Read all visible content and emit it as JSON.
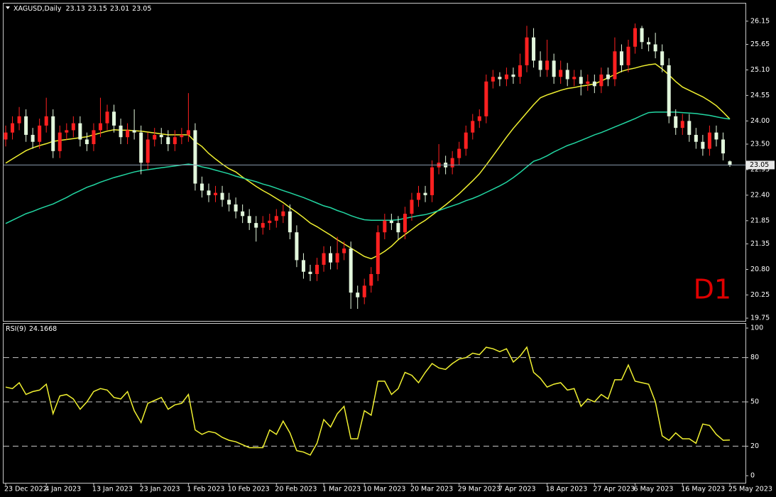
{
  "chart_data": {
    "type": "candlestick",
    "title": "XAGUSD,Daily",
    "annotation": "D1",
    "categories": [
      "23 Dec 2022",
      null,
      null,
      null,
      null,
      null,
      "4 Jan 2023",
      null,
      null,
      null,
      null,
      null,
      null,
      "13 Jan 2023",
      null,
      null,
      null,
      null,
      null,
      null,
      "23 Jan 2023",
      null,
      null,
      null,
      null,
      null,
      null,
      "1 Feb 2023",
      null,
      null,
      null,
      null,
      null,
      "10 Feb 2023",
      null,
      null,
      null,
      null,
      null,
      null,
      "20 Feb 2023",
      null,
      null,
      null,
      null,
      null,
      null,
      "1 Mar 2023",
      null,
      null,
      null,
      null,
      null,
      "10 Mar 2023",
      null,
      null,
      null,
      null,
      null,
      null,
      "20 Mar 2023",
      null,
      null,
      null,
      null,
      null,
      null,
      "29 Mar 2023",
      null,
      null,
      null,
      null,
      null,
      "7 Apr 2023",
      null,
      null,
      null,
      null,
      null,
      null,
      "18 Apr 2023",
      null,
      null,
      null,
      null,
      null,
      null,
      "27 Apr 2023",
      null,
      null,
      null,
      null,
      null,
      "6 May 2023",
      null,
      null,
      null,
      null,
      null,
      null,
      "16 May 2023",
      null,
      null,
      null,
      null,
      null,
      null,
      "25 May 2023"
    ],
    "open": [
      23.6,
      23.75,
      23.95,
      24.1,
      23.7,
      23.55,
      23.9,
      24.1,
      23.35,
      23.75,
      23.8,
      23.95,
      23.6,
      23.5,
      23.8,
      23.95,
      24.2,
      23.9,
      23.65,
      23.8,
      23.75,
      23.1,
      23.6,
      23.7,
      23.65,
      23.5,
      23.65,
      23.7,
      23.8,
      22.65,
      22.5,
      22.4,
      22.45,
      22.3,
      22.2,
      22.05,
      21.95,
      21.8,
      21.7,
      21.8,
      21.85,
      21.95,
      22.05,
      21.6,
      21.0,
      20.75,
      20.7,
      20.9,
      21.15,
      20.95,
      21.15,
      21.25,
      20.3,
      20.2,
      20.45,
      20.7,
      21.6,
      21.85,
      21.8,
      21.6,
      22.0,
      22.3,
      22.45,
      22.4,
      23.0,
      23.1,
      23.0,
      23.2,
      23.4,
      23.75,
      24.0,
      24.1,
      24.85,
      24.95,
      24.9,
      25.0,
      24.95,
      25.2,
      25.8,
      25.3,
      25.1,
      25.3,
      24.95,
      25.1,
      24.9,
      24.95,
      24.8,
      24.85,
      24.75,
      25.0,
      24.9,
      25.5,
      25.2,
      25.6,
      26.0,
      25.7,
      25.65,
      25.5,
      25.2,
      24.1,
      23.85,
      24.0,
      23.7,
      23.55,
      23.4,
      23.75,
      23.6,
      23.13
    ],
    "high": [
      23.9,
      24.1,
      24.3,
      24.25,
      23.85,
      24.05,
      24.5,
      24.25,
      23.9,
      23.95,
      24.1,
      24.1,
      23.75,
      23.95,
      24.5,
      24.35,
      24.35,
      24.05,
      23.95,
      24.25,
      23.9,
      23.75,
      23.85,
      23.85,
      23.8,
      23.8,
      23.85,
      24.6,
      23.95,
      22.8,
      22.65,
      22.6,
      22.6,
      22.45,
      22.35,
      22.2,
      22.1,
      21.95,
      21.95,
      22.0,
      22.1,
      22.2,
      22.2,
      21.75,
      21.15,
      20.9,
      21.05,
      21.3,
      21.3,
      21.5,
      21.4,
      21.4,
      20.45,
      20.6,
      20.85,
      21.75,
      22.0,
      22.0,
      21.95,
      22.15,
      22.45,
      22.6,
      22.6,
      23.15,
      23.5,
      23.25,
      23.35,
      23.55,
      23.9,
      24.15,
      24.25,
      25.0,
      25.1,
      25.05,
      25.15,
      25.15,
      25.45,
      26.05,
      26.0,
      25.5,
      25.75,
      25.45,
      25.3,
      25.25,
      25.1,
      25.1,
      25.0,
      25.0,
      25.15,
      25.15,
      25.8,
      25.65,
      25.75,
      26.1,
      26.05,
      25.8,
      25.9,
      25.65,
      25.35,
      24.25,
      24.15,
      24.15,
      23.85,
      23.7,
      23.9,
      23.9,
      23.75,
      23.15
    ],
    "low": [
      23.45,
      23.6,
      23.8,
      23.55,
      23.4,
      23.4,
      23.75,
      23.2,
      23.2,
      23.6,
      23.65,
      23.45,
      23.35,
      23.35,
      23.65,
      23.8,
      23.75,
      23.5,
      23.5,
      23.6,
      22.85,
      22.95,
      23.45,
      23.5,
      23.35,
      23.35,
      23.5,
      23.55,
      22.5,
      22.35,
      22.25,
      22.25,
      22.15,
      22.05,
      21.9,
      21.8,
      21.65,
      21.4,
      21.55,
      21.65,
      21.7,
      21.8,
      21.45,
      20.85,
      20.6,
      20.55,
      20.55,
      20.75,
      20.8,
      20.8,
      21.0,
      19.95,
      19.95,
      20.05,
      20.3,
      20.55,
      21.45,
      21.65,
      21.45,
      21.45,
      21.85,
      22.15,
      22.25,
      22.25,
      22.85,
      22.85,
      22.85,
      23.05,
      23.25,
      23.6,
      23.85,
      23.95,
      24.7,
      24.75,
      24.75,
      24.8,
      24.8,
      25.05,
      25.15,
      24.95,
      24.95,
      24.8,
      24.8,
      24.75,
      24.75,
      24.55,
      24.65,
      24.6,
      24.6,
      24.75,
      24.75,
      25.05,
      25.05,
      25.45,
      25.55,
      25.5,
      25.35,
      25.05,
      23.95,
      23.7,
      23.7,
      23.55,
      23.4,
      23.25,
      23.25,
      23.45,
      23.15,
      23.01
    ],
    "close": [
      23.75,
      23.95,
      24.1,
      23.7,
      23.55,
      23.9,
      24.1,
      23.35,
      23.75,
      23.8,
      23.95,
      23.6,
      23.5,
      23.8,
      23.95,
      24.2,
      23.9,
      23.65,
      23.8,
      23.75,
      23.1,
      23.6,
      23.7,
      23.65,
      23.5,
      23.65,
      23.7,
      23.8,
      22.65,
      22.5,
      22.4,
      22.45,
      22.3,
      22.2,
      22.05,
      21.95,
      21.8,
      21.7,
      21.8,
      21.85,
      21.95,
      22.05,
      21.6,
      21.0,
      20.75,
      20.7,
      20.9,
      21.15,
      20.95,
      21.15,
      21.25,
      20.3,
      20.2,
      20.45,
      20.7,
      21.6,
      21.85,
      21.8,
      21.6,
      22.0,
      22.3,
      22.45,
      22.4,
      23.0,
      23.1,
      23.0,
      23.2,
      23.4,
      23.75,
      24.0,
      24.1,
      24.85,
      24.95,
      24.9,
      25.0,
      24.95,
      25.2,
      25.8,
      25.3,
      25.1,
      25.3,
      24.95,
      25.1,
      24.9,
      24.95,
      24.8,
      24.85,
      24.75,
      25.0,
      24.9,
      25.5,
      25.2,
      25.6,
      26.0,
      25.7,
      25.65,
      25.5,
      25.2,
      24.1,
      23.85,
      24.0,
      23.7,
      23.55,
      23.4,
      23.75,
      23.6,
      23.3,
      23.05
    ],
    "bull_color": "#ff2020",
    "bear_color": "#e2f7dc",
    "series": [
      {
        "color": "#f0f030",
        "values": [
          23.09,
          23.18,
          23.27,
          23.36,
          23.42,
          23.47,
          23.51,
          23.56,
          23.58,
          23.6,
          23.62,
          23.64,
          23.66,
          23.7,
          23.74,
          23.78,
          23.81,
          23.8,
          23.8,
          23.79,
          23.78,
          23.76,
          23.74,
          23.72,
          23.7,
          23.7,
          23.7,
          23.7,
          23.55,
          23.45,
          23.3,
          23.18,
          23.07,
          22.97,
          22.9,
          22.79,
          22.69,
          22.59,
          22.5,
          22.42,
          22.33,
          22.24,
          22.13,
          22.03,
          21.92,
          21.8,
          21.72,
          21.63,
          21.54,
          21.44,
          21.35,
          21.26,
          21.17,
          21.08,
          21.03,
          21.1,
          21.19,
          21.3,
          21.44,
          21.55,
          21.66,
          21.77,
          21.86,
          21.97,
          22.08,
          22.19,
          22.31,
          22.43,
          22.57,
          22.71,
          22.86,
          23.05,
          23.25,
          23.45,
          23.65,
          23.84,
          24.01,
          24.18,
          24.35,
          24.5,
          24.56,
          24.61,
          24.66,
          24.7,
          24.72,
          24.75,
          24.77,
          24.8,
          24.86,
          24.93,
          25.0,
          25.07,
          25.11,
          25.14,
          25.18,
          25.21,
          25.23,
          25.12,
          24.99,
          24.85,
          24.73,
          24.66,
          24.59,
          24.52,
          24.43,
          24.33,
          24.19,
          24.04
        ]
      },
      {
        "color": "#22d6a2",
        "values": [
          21.79,
          21.86,
          21.93,
          22.0,
          22.05,
          22.11,
          22.16,
          22.21,
          22.28,
          22.35,
          22.43,
          22.5,
          22.57,
          22.62,
          22.68,
          22.73,
          22.78,
          22.82,
          22.86,
          22.9,
          22.93,
          22.95,
          22.97,
          22.99,
          23.01,
          23.03,
          23.05,
          23.07,
          23.05,
          23.01,
          22.98,
          22.94,
          22.9,
          22.86,
          22.81,
          22.77,
          22.73,
          22.69,
          22.64,
          22.6,
          22.55,
          22.5,
          22.45,
          22.4,
          22.35,
          22.29,
          22.23,
          22.17,
          22.13,
          22.07,
          22.02,
          21.96,
          21.91,
          21.87,
          21.86,
          21.86,
          21.86,
          21.86,
          21.87,
          21.9,
          21.93,
          21.96,
          21.98,
          22.02,
          22.07,
          22.12,
          22.17,
          22.22,
          22.28,
          22.33,
          22.39,
          22.46,
          22.53,
          22.6,
          22.68,
          22.78,
          22.89,
          23.01,
          23.13,
          23.18,
          23.25,
          23.33,
          23.4,
          23.47,
          23.52,
          23.58,
          23.64,
          23.7,
          23.75,
          23.81,
          23.87,
          23.93,
          23.99,
          24.05,
          24.12,
          24.18,
          24.19,
          24.19,
          24.19,
          24.19,
          24.18,
          24.17,
          24.16,
          24.14,
          24.12,
          24.09,
          24.06,
          24.04
        ]
      }
    ],
    "ylim": [
      19.69,
      26.53
    ],
    "yticks": [
      26.15,
      25.65,
      {
        "value": 25.1,
        "label": "25.10"
      },
      24.55,
      {
        "value": 24,
        "label": "24.00"
      },
      {
        "value": 23.5,
        "label": "23.50"
      },
      22.95,
      {
        "value": 22.4,
        "label": "22.40"
      },
      21.85,
      21.35,
      {
        "value": 20.8,
        "label": "20.80"
      },
      20.25,
      19.75
    ],
    "last_price_line": true,
    "indicator": {
      "type": "line",
      "title": "RSI(9)",
      "color": "#f0f030",
      "values": [
        60,
        59,
        63,
        55,
        57,
        58,
        62,
        42,
        54,
        55,
        52,
        45,
        50,
        57,
        59,
        58,
        53,
        52,
        57,
        44,
        36,
        49,
        51,
        53,
        45,
        48,
        49,
        55,
        31,
        28,
        30,
        29,
        26,
        24,
        23,
        21,
        19,
        19,
        19,
        31,
        28,
        37,
        29,
        17,
        16,
        14,
        22,
        38,
        33,
        42,
        47,
        25,
        25,
        44,
        41,
        64,
        64,
        55,
        59,
        70,
        68,
        63,
        70,
        76,
        73,
        72,
        76,
        79,
        80,
        83,
        82,
        87,
        86,
        84,
        86,
        77,
        81,
        87,
        70,
        66,
        60,
        62,
        63,
        58,
        59,
        47,
        52,
        50,
        55,
        52,
        65,
        65,
        75,
        64,
        63,
        62,
        50,
        27,
        24,
        29,
        25,
        25,
        22,
        35,
        34,
        28,
        24,
        24.1668
      ],
      "ylim": [
        -4.8,
        103.4
      ],
      "yticks": [
        0,
        20,
        50,
        80,
        100
      ],
      "levels": [
        20,
        50,
        80
      ]
    }
  }
}
